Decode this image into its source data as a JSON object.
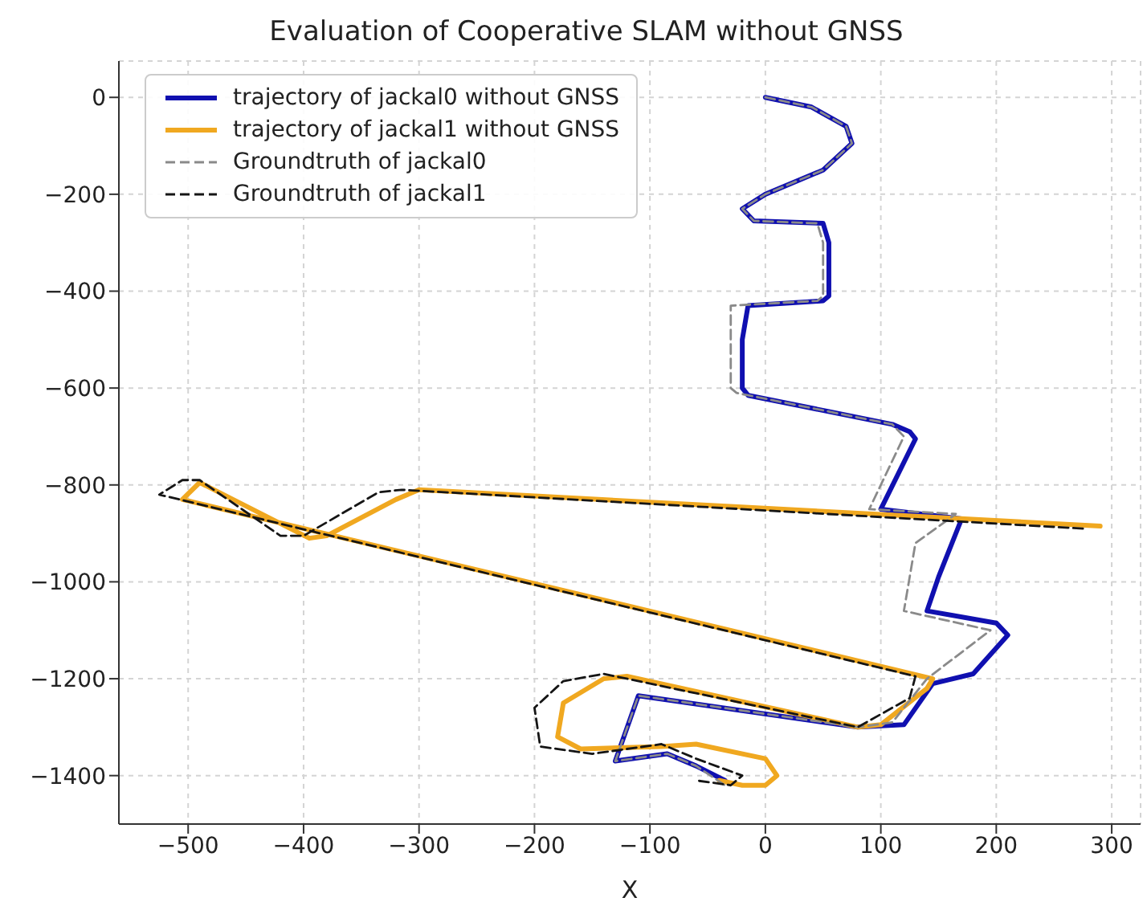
{
  "chart_data": {
    "type": "line",
    "title": "Evaluation of Cooperative SLAM without GNSS",
    "xlabel": "X",
    "xlim": [
      -560,
      325
    ],
    "ylim": [
      -1500,
      75
    ],
    "xticks": [
      -500,
      -400,
      -300,
      -200,
      -100,
      0,
      100,
      200,
      300
    ],
    "yticks": [
      -1400,
      -1200,
      -1000,
      -800,
      -600,
      -400,
      -200,
      0
    ],
    "grid": true,
    "legend": "top left",
    "marker": "none",
    "series": [
      {
        "name": "trajectory of jackal0 without GNSS",
        "color": "#1010b0",
        "line_style": "solid",
        "x": [
          0,
          40,
          70,
          75,
          50,
          0,
          -20,
          -10,
          50,
          55,
          55,
          50,
          -15,
          -20,
          -20,
          -15,
          110,
          125,
          130,
          100,
          170,
          150,
          140,
          200,
          210,
          180,
          145,
          120,
          80,
          -110,
          -130,
          -85,
          -60,
          -35
        ],
        "values": [
          0,
          -20,
          -60,
          -95,
          -150,
          -200,
          -230,
          -255,
          -260,
          -300,
          -410,
          -420,
          -430,
          -500,
          -600,
          -615,
          -675,
          -690,
          -705,
          -850,
          -870,
          -990,
          -1060,
          -1085,
          -1110,
          -1190,
          -1210,
          -1295,
          -1300,
          -1235,
          -1370,
          -1355,
          -1380,
          -1410
        ]
      },
      {
        "name": "trajectory of jackal1 without GNSS",
        "color": "#f0a820",
        "line_style": "solid",
        "x": [
          290,
          -300,
          -320,
          -380,
          -395,
          -490,
          -505,
          145,
          140,
          100,
          80,
          -120,
          -140,
          -175,
          -180,
          -160,
          -90,
          -60,
          0,
          10,
          0,
          -20,
          -40
        ],
        "values": [
          -885,
          -810,
          -830,
          -905,
          -910,
          -795,
          -830,
          -1200,
          -1220,
          -1295,
          -1300,
          -1195,
          -1200,
          -1250,
          -1320,
          -1345,
          -1340,
          -1335,
          -1365,
          -1400,
          -1420,
          -1420,
          -1410
        ]
      },
      {
        "name": "Groundtruth of jackal0",
        "color": "#8a8a8a",
        "line_style": "dashed",
        "x": [
          0,
          40,
          70,
          75,
          50,
          0,
          -20,
          -10,
          45,
          50,
          50,
          45,
          -30,
          -30,
          -25,
          110,
          120,
          90,
          165,
          130,
          120,
          195,
          140,
          110,
          80,
          -110,
          -130,
          -85,
          -60,
          -35
        ],
        "values": [
          0,
          -20,
          -60,
          -95,
          -150,
          -200,
          -230,
          -255,
          -260,
          -300,
          -410,
          -420,
          -430,
          -600,
          -610,
          -675,
          -700,
          -850,
          -860,
          -920,
          -1060,
          -1100,
          -1200,
          -1290,
          -1300,
          -1235,
          -1370,
          -1355,
          -1380,
          -1420
        ]
      },
      {
        "name": "Groundtruth of jackal1",
        "color": "#151515",
        "line_style": "dashed",
        "x": [
          275,
          -315,
          -335,
          -400,
          -420,
          -490,
          -505,
          -525,
          130,
          125,
          80,
          -140,
          -175,
          -200,
          -195,
          -150,
          -90,
          -60,
          -20,
          -30,
          -60
        ],
        "values": [
          -890,
          -810,
          -815,
          -905,
          -905,
          -790,
          -790,
          -820,
          -1195,
          -1240,
          -1300,
          -1190,
          -1205,
          -1260,
          -1340,
          -1355,
          -1335,
          -1365,
          -1400,
          -1420,
          -1410
        ]
      }
    ]
  }
}
